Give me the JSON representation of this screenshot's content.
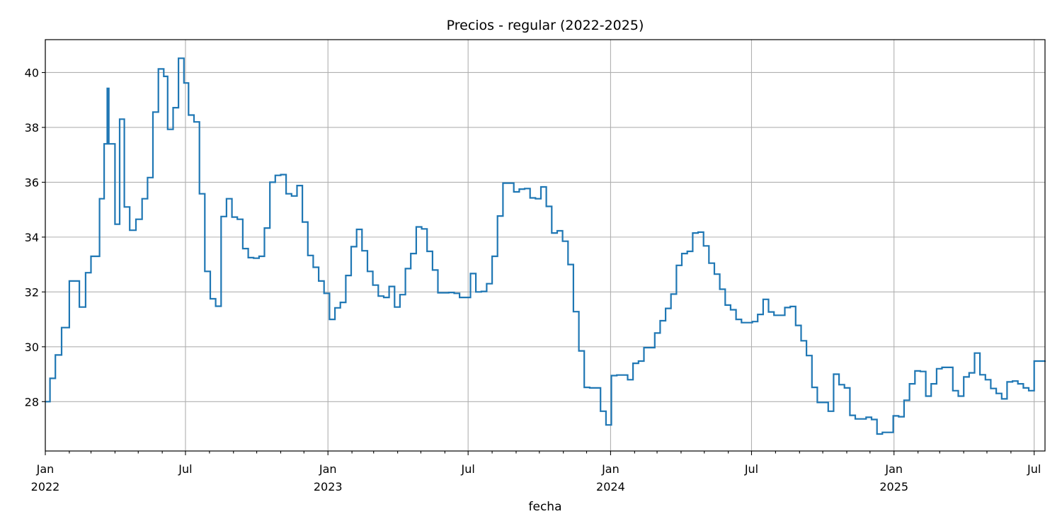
{
  "chart_data": {
    "type": "line",
    "title": "Precios - regular (2022-2025)",
    "xlabel": "fecha",
    "ylabel": "",
    "grid": true,
    "xlim": [
      "2022-01-01",
      "2025-07-15"
    ],
    "ylim": [
      26.2,
      41.2
    ],
    "yticks": [
      28,
      30,
      32,
      34,
      36,
      38,
      40
    ],
    "xticks_major": [
      {
        "date": "2022-01-01",
        "label": "Jan",
        "year": "2022"
      },
      {
        "date": "2022-07-01",
        "label": "Jul",
        "year": ""
      },
      {
        "date": "2023-01-01",
        "label": "Jan",
        "year": "2023"
      },
      {
        "date": "2023-07-01",
        "label": "Jul",
        "year": ""
      },
      {
        "date": "2024-01-01",
        "label": "Jan",
        "year": "2024"
      },
      {
        "date": "2024-07-01",
        "label": "Jul",
        "year": ""
      },
      {
        "date": "2025-01-01",
        "label": "Jan",
        "year": "2025"
      },
      {
        "date": "2025-07-01",
        "label": "Jul",
        "year": ""
      }
    ],
    "line_color": "#1f77b4",
    "series": [
      {
        "step": "post",
        "x": [
          "2022-01-01",
          "2022-01-07",
          "2022-01-14",
          "2022-01-22",
          "2022-02-01",
          "2022-02-14",
          "2022-02-22",
          "2022-03-01",
          "2022-03-12",
          "2022-03-18",
          "2022-03-22",
          "2022-03-24",
          "2022-04-01",
          "2022-04-07",
          "2022-04-13",
          "2022-04-20",
          "2022-04-25",
          "2022-04-28",
          "2022-05-06",
          "2022-05-13",
          "2022-05-20",
          "2022-05-27",
          "2022-06-03",
          "2022-06-08",
          "2022-06-15",
          "2022-06-22",
          "2022-06-29",
          "2022-07-05",
          "2022-07-12",
          "2022-07-19",
          "2022-07-26",
          "2022-08-02",
          "2022-08-09",
          "2022-08-16",
          "2022-08-23",
          "2022-08-30",
          "2022-09-06",
          "2022-09-13",
          "2022-09-20",
          "2022-09-27",
          "2022-10-04",
          "2022-10-11",
          "2022-10-18",
          "2022-10-25",
          "2022-11-01",
          "2022-11-08",
          "2022-11-15",
          "2022-11-22",
          "2022-11-29",
          "2022-12-06",
          "2022-12-13",
          "2022-12-20",
          "2022-12-27",
          "2023-01-03",
          "2023-01-10",
          "2023-01-17",
          "2023-01-24",
          "2023-01-31",
          "2023-02-07",
          "2023-02-14",
          "2023-02-21",
          "2023-02-28",
          "2023-03-07",
          "2023-03-14",
          "2023-03-21",
          "2023-03-28",
          "2023-04-04",
          "2023-04-11",
          "2023-04-18",
          "2023-04-25",
          "2023-05-02",
          "2023-05-09",
          "2023-05-16",
          "2023-05-23",
          "2023-05-30",
          "2023-06-06",
          "2023-06-13",
          "2023-06-20",
          "2023-06-27",
          "2023-07-04",
          "2023-07-11",
          "2023-07-18",
          "2023-07-25",
          "2023-08-01",
          "2023-08-08",
          "2023-08-15",
          "2023-08-22",
          "2023-08-29",
          "2023-09-05",
          "2023-09-12",
          "2023-09-19",
          "2023-09-26",
          "2023-10-03",
          "2023-10-10",
          "2023-10-17",
          "2023-10-24",
          "2023-10-31",
          "2023-11-07",
          "2023-11-14",
          "2023-11-21",
          "2023-11-28",
          "2023-12-05",
          "2023-12-12",
          "2023-12-19",
          "2023-12-26",
          "2024-01-02",
          "2024-01-09",
          "2024-01-16",
          "2024-01-23",
          "2024-01-30",
          "2024-02-06",
          "2024-02-13",
          "2024-02-20",
          "2024-02-27",
          "2024-03-05",
          "2024-03-12",
          "2024-03-19",
          "2024-03-26",
          "2024-04-02",
          "2024-04-09",
          "2024-04-16",
          "2024-04-23",
          "2024-04-30",
          "2024-05-07",
          "2024-05-14",
          "2024-05-21",
          "2024-05-28",
          "2024-06-04",
          "2024-06-11",
          "2024-06-18",
          "2024-06-25",
          "2024-07-02",
          "2024-07-09",
          "2024-07-16",
          "2024-07-23",
          "2024-07-30",
          "2024-08-06",
          "2024-08-13",
          "2024-08-20",
          "2024-08-27",
          "2024-09-03",
          "2024-09-10",
          "2024-09-17",
          "2024-09-24",
          "2024-10-01",
          "2024-10-08",
          "2024-10-15",
          "2024-10-22",
          "2024-10-29",
          "2024-11-05",
          "2024-11-12",
          "2024-11-19",
          "2024-11-26",
          "2024-12-03",
          "2024-12-10",
          "2024-12-17",
          "2024-12-24",
          "2024-12-31",
          "2025-01-07",
          "2025-01-14",
          "2025-01-21",
          "2025-01-28",
          "2025-02-04",
          "2025-02-11",
          "2025-02-18",
          "2025-02-25",
          "2025-03-04",
          "2025-03-11",
          "2025-03-18",
          "2025-03-25",
          "2025-04-01",
          "2025-04-08",
          "2025-04-15",
          "2025-04-22",
          "2025-04-29",
          "2025-05-06",
          "2025-05-13",
          "2025-05-20",
          "2025-05-27",
          "2025-06-03",
          "2025-06-10",
          "2025-06-17",
          "2025-06-24",
          "2025-07-01",
          "2025-07-08",
          "2025-07-15"
        ],
        "y": [
          28.0,
          28.85,
          29.7,
          30.7,
          32.4,
          31.45,
          32.7,
          33.3,
          35.4,
          37.4,
          39.42,
          37.4,
          34.47,
          38.3,
          35.1,
          34.25,
          34.25,
          34.65,
          35.4,
          36.17,
          38.56,
          40.13,
          39.86,
          37.93,
          38.72,
          40.52,
          39.62,
          38.45,
          38.2,
          35.58,
          32.75,
          31.75,
          31.48,
          34.75,
          35.4,
          34.73,
          34.65,
          33.58,
          33.25,
          33.23,
          33.3,
          34.33,
          36.0,
          36.25,
          36.28,
          35.58,
          35.5,
          35.88,
          34.55,
          33.33,
          32.9,
          32.4,
          31.95,
          31.0,
          31.42,
          31.62,
          32.6,
          33.65,
          34.28,
          33.5,
          32.75,
          32.25,
          31.85,
          31.8,
          32.2,
          31.45,
          31.9,
          32.85,
          33.4,
          34.37,
          34.3,
          33.48,
          32.8,
          31.97,
          31.97,
          31.98,
          31.95,
          31.8,
          31.8,
          32.67,
          32.0,
          32.02,
          32.3,
          33.3,
          34.77,
          35.97,
          35.97,
          35.65,
          35.75,
          35.77,
          35.43,
          35.4,
          35.83,
          35.12,
          34.15,
          34.23,
          33.85,
          33.0,
          31.28,
          29.85,
          28.52,
          28.5,
          28.5,
          27.65,
          27.15,
          28.95,
          28.97,
          28.97,
          28.8,
          29.4,
          29.48,
          29.97,
          29.97,
          30.5,
          30.95,
          31.4,
          31.92,
          32.97,
          33.4,
          33.48,
          34.15,
          34.18,
          33.68,
          33.05,
          32.65,
          32.1,
          31.52,
          31.35,
          31.0,
          30.88,
          30.88,
          30.92,
          31.18,
          31.73,
          31.27,
          31.15,
          31.15,
          31.43,
          31.47,
          30.78,
          30.22,
          29.68,
          28.52,
          27.97,
          27.97,
          27.65,
          29.0,
          28.62,
          28.5,
          27.5,
          27.37,
          27.37,
          27.43,
          27.35,
          26.82,
          26.88,
          26.88,
          27.48,
          27.45,
          28.05,
          28.65,
          29.12,
          29.1,
          28.2,
          28.65,
          29.2,
          29.25,
          29.25,
          28.4,
          28.2,
          28.9,
          29.05,
          29.77,
          28.98,
          28.8,
          28.48,
          28.3,
          28.1,
          28.72,
          28.75,
          28.65,
          28.5,
          28.4,
          29.48,
          29.48,
          29.5
        ]
      }
    ]
  }
}
